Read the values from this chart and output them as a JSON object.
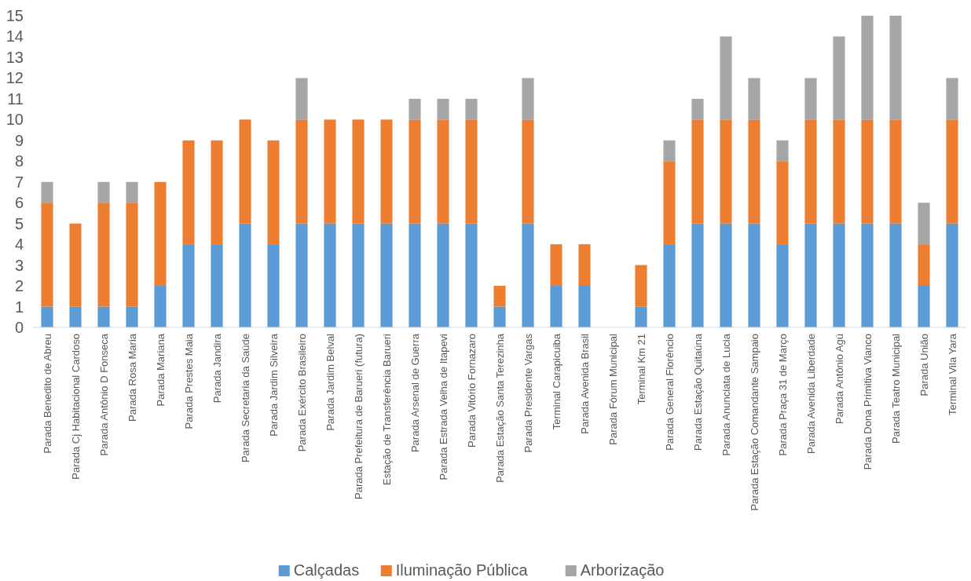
{
  "chart_data": {
    "type": "bar",
    "stacked": true,
    "legend": "bottom",
    "grid": false,
    "categories": [
      "Parada Benedito de Abreu",
      "Parada Cj Habitacional Cardoso",
      "Parada Antônio D Fonseca",
      "Parada Rosa Maria",
      "Parada Mariana",
      "Parada Prestes Maia",
      "Parada Jandira",
      "Parada Secretaria da Saúde",
      "Parada Jardim Silveira",
      "Parada Exército Brasileiro",
      "Parada Jardim Belval",
      "Parada Prefeitura de Barueri (futura)",
      "Estação de Transferência Barueri",
      "Parada Arsenal de Guerra",
      "Parada Estrada Velha de Itapevi",
      "Parada Vitório Fornazaro",
      "Parada Estação Santa Terezinha",
      "Parada Presidente Vargas",
      "Terminal Carapicuiba",
      "Parada Avenida Brasil",
      "Parada Fórum Municipal",
      "Terminal Km 21",
      "Parada General Florêncio",
      "Parada Estação Quitaúna",
      "Parada Anunciata de Lucia",
      "Parada Estação Comandante Sampaio",
      "Parada Praça 31 de Março",
      "Parada Avenida Liberdade",
      "Parada Antônio Agú",
      "Parada Dona Primitiva Vianco",
      "Parada Teatro Municipal",
      "Parada União",
      "Terminal Vila Yara"
    ],
    "series": [
      {
        "name": "Calçadas",
        "color": "#5b9bd5",
        "values": [
          1,
          1,
          1,
          1,
          2,
          4,
          4,
          5,
          4,
          5,
          5,
          5,
          5,
          5,
          5,
          5,
          1,
          5,
          2,
          2,
          0,
          1,
          4,
          5,
          5,
          5,
          4,
          5,
          5,
          5,
          5,
          2,
          5
        ]
      },
      {
        "name": "Iluminação Pública",
        "color": "#ed7d31",
        "values": [
          5,
          4,
          5,
          5,
          5,
          5,
          5,
          5,
          5,
          5,
          5,
          5,
          5,
          5,
          5,
          5,
          1,
          5,
          2,
          2,
          0,
          2,
          4,
          5,
          5,
          5,
          4,
          5,
          5,
          5,
          5,
          2,
          5
        ]
      },
      {
        "name": "Arborização",
        "color": "#a5a5a5",
        "values": [
          1,
          0,
          1,
          1,
          0,
          0,
          0,
          0,
          0,
          2,
          0,
          0,
          0,
          1,
          1,
          1,
          0,
          2,
          0,
          0,
          0,
          0,
          1,
          1,
          4,
          2,
          1,
          2,
          4,
          5,
          5,
          2,
          2
        ]
      }
    ],
    "ylim": [
      0,
      15
    ],
    "yticks": [
      0,
      1,
      2,
      3,
      4,
      5,
      6,
      7,
      8,
      9,
      10,
      11,
      12,
      13,
      14,
      15
    ]
  }
}
